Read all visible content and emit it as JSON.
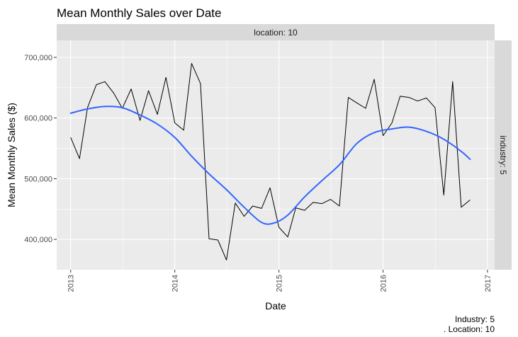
{
  "chart_data": {
    "type": "line",
    "title": "Mean Monthly Sales over Date",
    "xlabel": "Date",
    "ylabel": "Mean Monthly Sales ($)",
    "facet_top_label": "location: 10",
    "facet_right_label": "industry: 5",
    "caption_lines": [
      "Industry: 5",
      ". Location: 10"
    ],
    "x_ticks": [
      "2013",
      "2014",
      "2015",
      "2016",
      "2017"
    ],
    "y_ticks": [
      "400,000",
      "500,000",
      "600,000",
      "700,000"
    ],
    "y_tick_values": [
      400000,
      500000,
      600000,
      700000
    ],
    "xlim": [
      "2012-11-13",
      "2017-01-26"
    ],
    "ylim": [
      350000,
      728000
    ],
    "grid": true,
    "colors": {
      "panel": "#EBEBEB",
      "grid": "#FFFFFF",
      "strip": "#D9D9D9",
      "series": "#000000",
      "smooth": "#3366FF"
    },
    "series": [
      {
        "x": [
          "2013-01-01",
          "2013-02-01",
          "2013-03-01",
          "2013-04-01",
          "2013-05-01",
          "2013-06-01",
          "2013-07-01",
          "2013-08-01",
          "2013-09-01",
          "2013-10-01",
          "2013-11-01",
          "2013-12-01",
          "2014-01-01",
          "2014-02-01",
          "2014-03-01",
          "2014-04-01",
          "2014-05-01",
          "2014-06-01",
          "2014-07-01",
          "2014-08-01",
          "2014-09-01",
          "2014-10-01",
          "2014-11-01",
          "2014-12-01",
          "2015-01-01",
          "2015-02-01",
          "2015-03-01",
          "2015-04-01",
          "2015-05-01",
          "2015-06-01",
          "2015-07-01",
          "2015-08-01",
          "2015-09-01",
          "2015-10-01",
          "2015-11-01",
          "2015-12-01",
          "2016-01-01",
          "2016-02-01",
          "2016-03-01",
          "2016-04-01",
          "2016-05-01",
          "2016-06-01",
          "2016-07-01",
          "2016-08-01",
          "2016-09-01",
          "2016-10-01",
          "2016-11-01"
        ],
        "values": [
          568000,
          533000,
          617000,
          655000,
          660000,
          641000,
          616000,
          648000,
          596000,
          645000,
          606000,
          667000,
          592000,
          580000,
          690000,
          657000,
          401000,
          399000,
          366000,
          460000,
          438000,
          455000,
          451000,
          485000,
          420000,
          404000,
          452000,
          448000,
          461000,
          459000,
          466000,
          455000,
          634000,
          625000,
          616000,
          664000,
          571000,
          592000,
          636000,
          634000,
          628000,
          633000,
          617000,
          473000,
          660000,
          453000,
          465000
        ]
      },
      {
        "x": [
          "2013-01-01",
          "2013-03-01",
          "2013-05-01",
          "2013-07-01",
          "2013-09-01",
          "2013-11-01",
          "2014-01-01",
          "2014-03-01",
          "2014-05-01",
          "2014-07-01",
          "2014-09-01",
          "2014-11-01",
          "2014-12-15",
          "2015-02-01",
          "2015-04-01",
          "2015-06-01",
          "2015-08-01",
          "2015-10-01",
          "2015-12-01",
          "2016-02-01",
          "2016-04-01",
          "2016-06-01",
          "2016-08-01",
          "2016-10-01",
          "2016-11-01"
        ],
        "values": [
          608000,
          615000,
          619000,
          617000,
          605000,
          590000,
          568000,
          537000,
          508000,
          482000,
          453000,
          428000,
          427000,
          440000,
          470000,
          497000,
          523000,
          558000,
          576000,
          582000,
          585000,
          578000,
          565000,
          545000,
          532000
        ]
      }
    ]
  }
}
